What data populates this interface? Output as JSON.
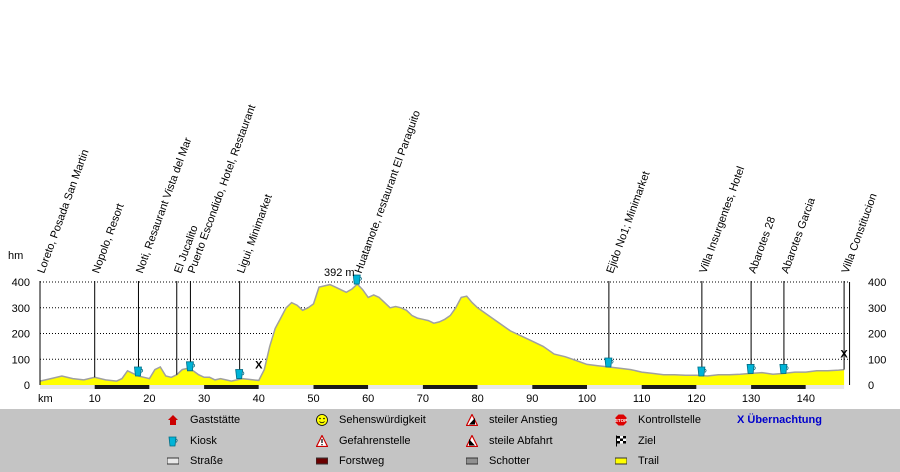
{
  "chart_data": {
    "type": "area",
    "title": "",
    "xlabel": "km",
    "ylabel": "hm",
    "xlim": [
      0,
      148
    ],
    "ylim": [
      0,
      400
    ],
    "x_ticks": [
      10,
      20,
      30,
      40,
      50,
      60,
      70,
      80,
      90,
      100,
      110,
      120,
      130,
      140
    ],
    "y_ticks": [
      0,
      100,
      200,
      300,
      400
    ],
    "grid": "dotted horizontal",
    "fill_color": "#ffff00",
    "line_color": "#a0a0a0",
    "max_label": "392 m",
    "max_point": {
      "x": 58,
      "y": 392
    },
    "series": [
      {
        "x": [
          0,
          2,
          4,
          6,
          8,
          10,
          12,
          14,
          15,
          16,
          17,
          18,
          19,
          20,
          21,
          22,
          23,
          24,
          25,
          26,
          27,
          28,
          29,
          30,
          31,
          32,
          33,
          34,
          35,
          36,
          37,
          38,
          39,
          40,
          41,
          42,
          43,
          44,
          45,
          46,
          47,
          48,
          49,
          50,
          51,
          52,
          53,
          54,
          55,
          56,
          57,
          58,
          59,
          60,
          61,
          62,
          63,
          64,
          65,
          66,
          67,
          68,
          69,
          70,
          71,
          72,
          73,
          74,
          75,
          76,
          77,
          78,
          79,
          80,
          82,
          84,
          86,
          88,
          90,
          92,
          94,
          96,
          98,
          100,
          102,
          104,
          106,
          108,
          110,
          112,
          114,
          116,
          118,
          120,
          122,
          124,
          126,
          128,
          130,
          132,
          134,
          136,
          138,
          140,
          142,
          144,
          146,
          147
        ],
        "y": [
          15,
          25,
          35,
          25,
          20,
          30,
          20,
          15,
          25,
          55,
          45,
          35,
          30,
          25,
          60,
          70,
          35,
          30,
          40,
          60,
          65,
          55,
          40,
          30,
          30,
          20,
          25,
          20,
          15,
          20,
          25,
          22,
          20,
          18,
          60,
          150,
          220,
          260,
          300,
          320,
          310,
          290,
          300,
          315,
          380,
          385,
          390,
          380,
          370,
          360,
          372,
          392,
          370,
          340,
          350,
          340,
          320,
          300,
          305,
          300,
          290,
          270,
          260,
          255,
          250,
          240,
          245,
          255,
          270,
          300,
          340,
          345,
          320,
          300,
          270,
          240,
          210,
          190,
          170,
          150,
          120,
          110,
          95,
          80,
          75,
          70,
          65,
          60,
          50,
          45,
          40,
          40,
          38,
          38,
          35,
          40,
          40,
          42,
          45,
          48,
          42,
          45,
          50,
          50,
          55,
          55,
          58,
          60
        ]
      }
    ],
    "annotations": [
      {
        "label": "Loreto, Posada San Martin",
        "x": 0,
        "icon": "none"
      },
      {
        "label": "Nopolo, Resort",
        "x": 10,
        "icon": "none"
      },
      {
        "label": "Noti, Resaurant Vista del Mar",
        "x": 18,
        "icon": "kiosk"
      },
      {
        "label": "El Jucalito",
        "x": 25,
        "icon": "none"
      },
      {
        "label": "Puerto Escondido, Hotel, Restaurant",
        "x": 27.5,
        "icon": "kiosk"
      },
      {
        "label": "Ligui, Minimarket",
        "x": 36.5,
        "icon": "kiosk"
      },
      {
        "label": "",
        "x": 40,
        "icon": "overnight"
      },
      {
        "label": "Huatamote, restaurant El Paraguito",
        "x": 58,
        "icon": "kiosk"
      },
      {
        "label": "Ejido No1; Minimarket",
        "x": 104,
        "icon": "kiosk"
      },
      {
        "label": "Villa Insurgentes, Hotel",
        "x": 121,
        "icon": "kiosk"
      },
      {
        "label": "Abarotes 28",
        "x": 130,
        "icon": "kiosk"
      },
      {
        "label": "Abarotes Garcia",
        "x": 136,
        "icon": "kiosk"
      },
      {
        "label": "Villa Constitucion",
        "x": 147,
        "icon": "overnight"
      }
    ],
    "surface_bar": [
      {
        "from": 0,
        "to": 10,
        "type": "road"
      },
      {
        "from": 10,
        "to": 20,
        "type": "forest-track"
      },
      {
        "from": 20,
        "to": 30,
        "type": "road"
      },
      {
        "from": 30,
        "to": 40,
        "type": "forest-track"
      },
      {
        "from": 40,
        "to": 50,
        "type": "road"
      },
      {
        "from": 50,
        "to": 60,
        "type": "forest-track"
      },
      {
        "from": 60,
        "to": 70,
        "type": "road"
      },
      {
        "from": 70,
        "to": 80,
        "type": "forest-track"
      },
      {
        "from": 80,
        "to": 90,
        "type": "road"
      },
      {
        "from": 90,
        "to": 100,
        "type": "forest-track"
      },
      {
        "from": 100,
        "to": 110,
        "type": "road"
      },
      {
        "from": 110,
        "to": 120,
        "type": "forest-track"
      },
      {
        "from": 120,
        "to": 130,
        "type": "road"
      },
      {
        "from": 130,
        "to": 140,
        "type": "forest-track"
      },
      {
        "from": 140,
        "to": 147,
        "type": "road"
      }
    ]
  },
  "legend": {
    "items": [
      {
        "key": "restaurant",
        "label": "Gaststätte",
        "icon": "house-icon"
      },
      {
        "key": "sight",
        "label": "Sehenswürdigkeit",
        "icon": "smiley-icon"
      },
      {
        "key": "climb",
        "label": "steiler Anstieg",
        "icon": "steep-climb-icon"
      },
      {
        "key": "control",
        "label": "Kontrollstelle",
        "icon": "stop-sign-icon"
      },
      {
        "key": "overnight",
        "label": "X Übernachtung",
        "icon": "x-mark-icon"
      },
      {
        "key": "kiosk",
        "label": "Kiosk",
        "icon": "kiosk-cup-icon"
      },
      {
        "key": "danger",
        "label": "Gefahrenstelle",
        "icon": "warning-icon"
      },
      {
        "key": "descent",
        "label": "steile Abfahrt",
        "icon": "steep-descent-icon"
      },
      {
        "key": "finish",
        "label": "Ziel",
        "icon": "checkered-flag-icon"
      },
      {
        "key": "road",
        "label": "Straße",
        "icon": "road-swatch-icon",
        "color": "#e8e8e8"
      },
      {
        "key": "forest",
        "label": "Forstweg",
        "icon": "forest-swatch-icon",
        "color": "#6b0000"
      },
      {
        "key": "gravel",
        "label": "Schotter",
        "icon": "gravel-swatch-icon",
        "color": "#909090"
      },
      {
        "key": "trail",
        "label": "Trail",
        "icon": "trail-swatch-icon",
        "color": "#ffff00"
      }
    ]
  },
  "colors": {
    "profile_fill": "#ffff00",
    "profile_line": "#a0a0a0",
    "max_label": "#cc0000",
    "overnight": "#0000cc",
    "kiosk": "#00b4d8",
    "legend_bg": "#c4c4c4"
  }
}
